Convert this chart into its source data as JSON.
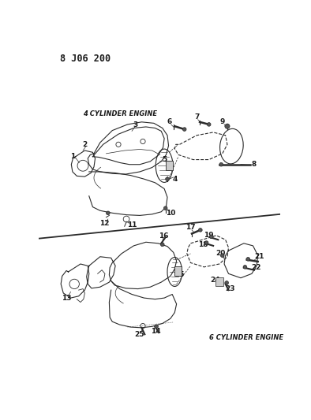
{
  "title": "8 J06 200",
  "background_color": "#ffffff",
  "figsize": [
    3.94,
    5.33
  ],
  "dpi": 100,
  "label_4cyl": "4 CYLINDER ENGINE",
  "label_6cyl": "6 CYLINDER ENGINE",
  "line_color": "#2a2a2a",
  "text_color": "#1a1a1a",
  "title_fontsize": 8.5,
  "label_fontsize": 6.0,
  "number_fontsize": 6.5,
  "divider_color": "#2a2a2a",
  "divider_linewidth": 1.2
}
